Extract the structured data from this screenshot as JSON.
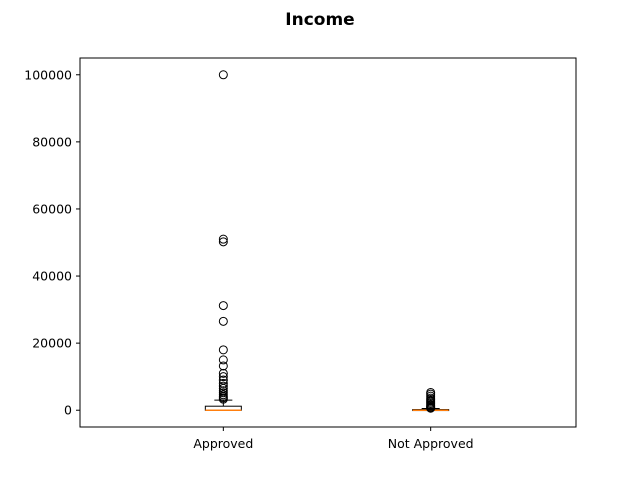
{
  "chart_data": {
    "type": "boxplot",
    "title": "Income",
    "xlabel": "",
    "ylabel": "",
    "ylim": [
      -5000,
      105000
    ],
    "yticks": [
      0,
      20000,
      40000,
      60000,
      80000,
      100000
    ],
    "y_tick_labels": [
      "0",
      "20000",
      "40000",
      "60000",
      "80000",
      "100000"
    ],
    "grid": false,
    "categories": [
      "Approved",
      "Not Approved"
    ],
    "series": [
      {
        "category": "Approved",
        "whisker_low": 0,
        "q1": 0,
        "median": 0,
        "q3": 1200,
        "whisker_high": 3000,
        "outliers": [
          3300,
          3700,
          4100,
          4600,
          5200,
          5800,
          6500,
          7200,
          8000,
          9000,
          10000,
          11000,
          13200,
          15000,
          18000,
          26500,
          31200,
          50200,
          51000,
          100000
        ]
      },
      {
        "category": "Not Approved",
        "whisker_low": 0,
        "q1": 0,
        "median": 0,
        "q3": 200,
        "whisker_high": 500,
        "outliers": [
          600,
          800,
          1000,
          1300,
          1600,
          2000,
          2400,
          2800,
          3200,
          3600,
          4200,
          4800,
          5300
        ]
      }
    ],
    "colors": {
      "median": "#ff7f0e",
      "box": "#000000",
      "flier": "#000000"
    }
  }
}
